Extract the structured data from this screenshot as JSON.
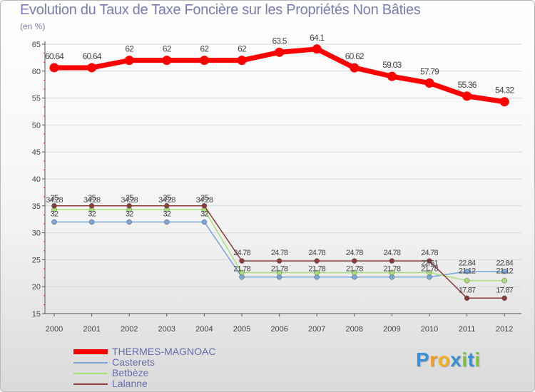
{
  "chart_data": {
    "type": "line",
    "title": "Evolution du Taux de Taxe Foncière sur les Propriétés Non Bâties",
    "ylabel": "(en %)",
    "xlabel": "",
    "ylim": [
      15,
      65
    ],
    "yticks": [
      15,
      20,
      25,
      30,
      35,
      40,
      45,
      50,
      55,
      60,
      65
    ],
    "categories": [
      "2000",
      "2001",
      "2002",
      "2003",
      "2004",
      "2005",
      "2006",
      "2007",
      "2008",
      "2009",
      "2010",
      "2011",
      "2012"
    ],
    "series": [
      {
        "name": "THERMES-MAGNOAC",
        "color": "#ff0000",
        "values": [
          60.64,
          60.64,
          62,
          62,
          62,
          62,
          63.5,
          64.1,
          60.62,
          59.03,
          57.79,
          55.36,
          54.32
        ],
        "labels": [
          "60.64",
          "60.64",
          "62",
          "62",
          "62",
          "62",
          "63.5",
          "64.1",
          "60.62",
          "59.03",
          "57.79",
          "55.36",
          "54.32"
        ]
      },
      {
        "name": "Casterets",
        "color": "#7aa6d6",
        "values": [
          32,
          32,
          32,
          32,
          32,
          21.78,
          21.78,
          21.78,
          21.78,
          21.78,
          21.78,
          22.84,
          22.84
        ],
        "labels": [
          "32",
          "32",
          "32",
          "32",
          "32",
          "21.78",
          "21.78",
          "21.78",
          "21.78",
          "21.78",
          "21.78",
          "22.84",
          "22.84"
        ]
      },
      {
        "name": "Betbèze",
        "color": "#a9e07a",
        "values": [
          34.28,
          34.28,
          34.28,
          34.28,
          34.28,
          22.61,
          22.61,
          22.61,
          22.61,
          22.61,
          22.61,
          21.12,
          21.12
        ],
        "labels": [
          "34.28",
          "34.28",
          "34.28",
          "34.28",
          "34.28",
          "",
          "",
          "",
          "",
          "",
          "22.61",
          "21.12",
          "21.12"
        ]
      },
      {
        "name": "Lalanne",
        "color": "#8c3b3b",
        "values": [
          35,
          35,
          35,
          35,
          35,
          24.78,
          24.78,
          24.78,
          24.78,
          24.78,
          24.78,
          17.87,
          17.87
        ],
        "labels": [
          "35",
          "35",
          "35",
          "35",
          "35",
          "24.78",
          "24.78",
          "24.78",
          "24.78",
          "24.78",
          "24.78",
          "17.87",
          "17.87"
        ]
      }
    ]
  },
  "legend": {
    "items": [
      {
        "label": "THERMES-MAGNOAC",
        "color": "#ff0000"
      },
      {
        "label": "Casterets",
        "color": "#7aa6d6"
      },
      {
        "label": "Betbèze",
        "color": "#a9e07a"
      },
      {
        "label": "Lalanne",
        "color": "#8c3b3b"
      }
    ]
  },
  "logo": {
    "letters": [
      "P",
      "r",
      "o",
      "x",
      "i",
      "t",
      "i"
    ],
    "colors": [
      "#3a8fd6",
      "#f29b1d",
      "#f2b01d",
      "#3a8fd6",
      "#7cc242",
      "#3a8fd6",
      "#7cc242"
    ]
  }
}
